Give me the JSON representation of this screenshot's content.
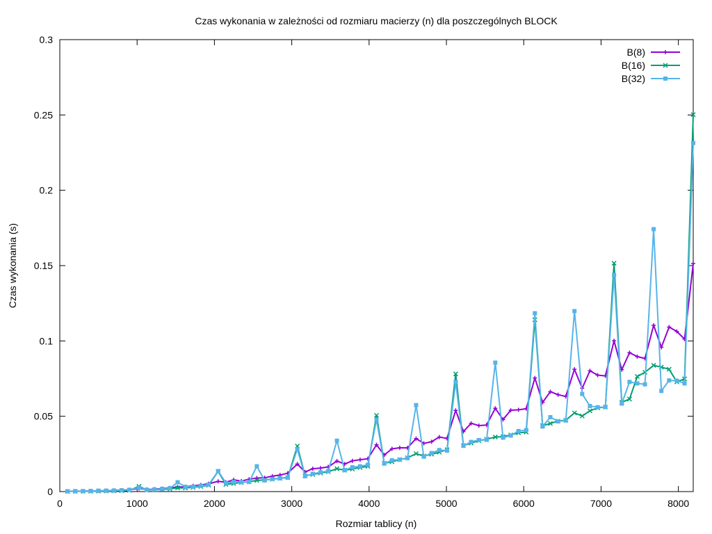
{
  "chart_data": {
    "type": "line",
    "title": "Czas wykonania w zależności od rozmiaru macierzy (n) dla poszczególnych BLOCK",
    "xlabel": "Rozmiar tablicy (n)",
    "ylabel": "Czas wykonania (s)",
    "xlim": [
      0,
      8192
    ],
    "ylim": [
      0,
      0.3
    ],
    "xticks": [
      "0",
      "1000",
      "2000",
      "3000",
      "4000",
      "5000",
      "6000",
      "7000",
      "8000"
    ],
    "yticks": [
      "0",
      "0.05",
      "0.1",
      "0.15",
      "0.2",
      "0.25",
      "0.3"
    ],
    "grid": false,
    "legend_position": "top-right",
    "x": [
      100,
      200,
      300,
      400,
      500,
      600,
      700,
      800,
      900,
      1024,
      1124,
      1224,
      1324,
      1424,
      1524,
      1624,
      1724,
      1824,
      1924,
      2048,
      2148,
      2248,
      2348,
      2448,
      2548,
      2648,
      2748,
      2848,
      2948,
      3072,
      3172,
      3272,
      3372,
      3472,
      3584,
      3684,
      3784,
      3884,
      3984,
      4096,
      4196,
      4296,
      4396,
      4496,
      4608,
      4708,
      4808,
      4908,
      5008,
      5120,
      5220,
      5320,
      5420,
      5520,
      5632,
      5732,
      5832,
      5932,
      6032,
      6144,
      6244,
      6344,
      6444,
      6544,
      6656,
      6756,
      6856,
      6956,
      7056,
      7168,
      7268,
      7368,
      7468,
      7568,
      7680,
      7780,
      7880,
      7980,
      8080,
      8192
    ],
    "series": [
      {
        "name": "B(8)",
        "color": "#9400d3",
        "marker": "plus",
        "values": [
          0.0002,
          0.0003,
          0.0003,
          0.0004,
          0.0005,
          0.0006,
          0.0008,
          0.0009,
          0.0012,
          0.002,
          0.0014,
          0.0016,
          0.002,
          0.0024,
          0.003,
          0.0032,
          0.0038,
          0.0044,
          0.0052,
          0.0068,
          0.0062,
          0.0078,
          0.007,
          0.0082,
          0.009,
          0.0092,
          0.0102,
          0.011,
          0.0122,
          0.0183,
          0.013,
          0.0152,
          0.0156,
          0.0164,
          0.0203,
          0.0183,
          0.0204,
          0.0212,
          0.0218,
          0.0311,
          0.0243,
          0.0284,
          0.0291,
          0.029,
          0.0352,
          0.032,
          0.0331,
          0.0362,
          0.0353,
          0.0539,
          0.0399,
          0.0453,
          0.0438,
          0.0442,
          0.0553,
          0.0478,
          0.054,
          0.0543,
          0.055,
          0.0754,
          0.0592,
          0.0663,
          0.0643,
          0.0632,
          0.0812,
          0.0686,
          0.0802,
          0.0773,
          0.0768,
          0.1001,
          0.0809,
          0.0922,
          0.0896,
          0.0884,
          0.1104,
          0.0958,
          0.1092,
          0.1063,
          0.1012,
          0.1514
        ]
      },
      {
        "name": "B(16)",
        "color": "#009e73",
        "marker": "cross",
        "values": [
          0.0001,
          0.0002,
          0.0002,
          0.0002,
          0.0003,
          0.0004,
          0.0005,
          0.0006,
          0.0008,
          0.0035,
          0.001,
          0.0012,
          0.0014,
          0.0018,
          0.0025,
          0.0024,
          0.0028,
          0.0034,
          0.0042,
          0.0134,
          0.0048,
          0.0054,
          0.006,
          0.0066,
          0.0074,
          0.0078,
          0.0082,
          0.0088,
          0.0094,
          0.0302,
          0.0105,
          0.0114,
          0.0123,
          0.0132,
          0.0152,
          0.0142,
          0.015,
          0.016,
          0.0168,
          0.0506,
          0.0188,
          0.0198,
          0.0212,
          0.0224,
          0.0252,
          0.0236,
          0.0248,
          0.0262,
          0.0278,
          0.0781,
          0.0306,
          0.0322,
          0.0338,
          0.0348,
          0.0362,
          0.0365,
          0.0376,
          0.039,
          0.0395,
          0.1141,
          0.0438,
          0.0452,
          0.0468,
          0.0474,
          0.0522,
          0.0502,
          0.0536,
          0.0556,
          0.0561,
          0.1516,
          0.0592,
          0.0614,
          0.0764,
          0.0792,
          0.0838,
          0.0826,
          0.0812,
          0.0728,
          0.0748,
          0.2502
        ]
      },
      {
        "name": "B(32)",
        "color": "#56b4e9",
        "marker": "box",
        "values": [
          0.0002,
          0.0002,
          0.0003,
          0.0004,
          0.0006,
          0.0006,
          0.0007,
          0.0009,
          0.0012,
          0.0026,
          0.0012,
          0.0014,
          0.0018,
          0.0022,
          0.0062,
          0.0032,
          0.0032,
          0.0038,
          0.0046,
          0.0136,
          0.0058,
          0.0064,
          0.0062,
          0.0064,
          0.0168,
          0.0074,
          0.0084,
          0.0088,
          0.0092,
          0.0282,
          0.0102,
          0.0118,
          0.0128,
          0.0136,
          0.0338,
          0.0142,
          0.0162,
          0.0168,
          0.0178,
          0.0478,
          0.0186,
          0.0208,
          0.0212,
          0.0222,
          0.0574,
          0.0232,
          0.0256,
          0.0276,
          0.0272,
          0.0728,
          0.0304,
          0.033,
          0.0342,
          0.0344,
          0.0856,
          0.0358,
          0.0372,
          0.0402,
          0.0408,
          0.1184,
          0.0432,
          0.0494,
          0.0466,
          0.0472,
          0.1198,
          0.0648,
          0.0568,
          0.056,
          0.0561,
          0.1438,
          0.0584,
          0.0728,
          0.0718,
          0.0712,
          0.1742,
          0.0668,
          0.0738,
          0.0736,
          0.0718,
          0.2314
        ]
      }
    ]
  }
}
